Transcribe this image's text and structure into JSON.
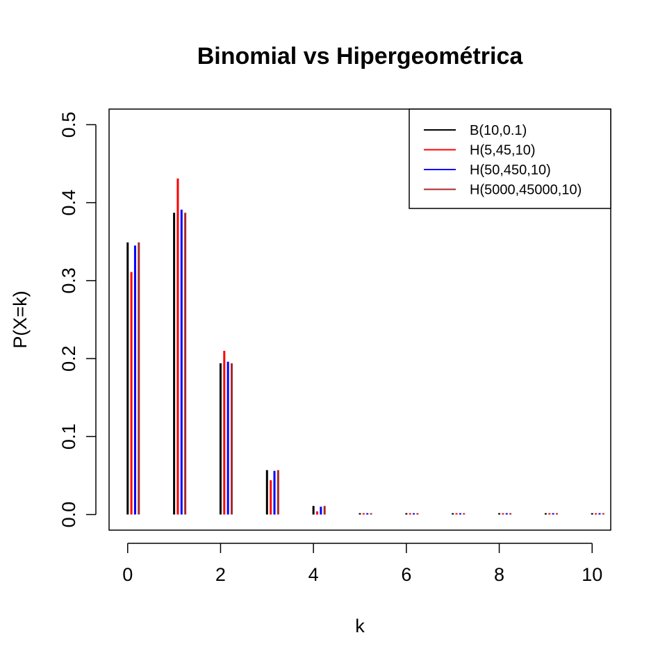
{
  "chart_data": {
    "type": "bar",
    "title": "Binomial vs Hipergeométrica",
    "xlabel": "k",
    "ylabel": "P(X=k)",
    "xlim": [
      -0.4,
      10.4
    ],
    "ylim": [
      -0.02,
      0.52
    ],
    "x_ticks": [
      "0",
      "2",
      "4",
      "6",
      "8",
      "10"
    ],
    "y_ticks": [
      "0.0",
      "0.1",
      "0.2",
      "0.3",
      "0.4",
      "0.5"
    ],
    "legend_position": "top-right",
    "x": [
      0,
      1,
      2,
      3,
      4,
      5,
      6,
      7,
      8,
      9,
      10
    ],
    "series": [
      {
        "name": "B(10,0.1)",
        "color": "#000000",
        "values": [
          0.349,
          0.387,
          0.194,
          0.057,
          0.011,
          0.0015,
          0.0001,
          0.0,
          0.0,
          0.0,
          0.0
        ]
      },
      {
        "name": "H(5,45,10)",
        "color": "#ff0000",
        "values": [
          0.311,
          0.431,
          0.21,
          0.044,
          0.004,
          0.0001,
          0.0,
          0.0,
          0.0,
          0.0,
          0.0
        ]
      },
      {
        "name": "H(50,450,10)",
        "color": "#0000ff",
        "values": [
          0.345,
          0.391,
          0.196,
          0.056,
          0.01,
          0.0012,
          0.0001,
          0.0,
          0.0,
          0.0,
          0.0
        ]
      },
      {
        "name": "H(5000,45000,10)",
        "color": "#a52a2a",
        "values": [
          0.349,
          0.387,
          0.194,
          0.057,
          0.011,
          0.0015,
          0.0001,
          0.0,
          0.0,
          0.0,
          0.0
        ]
      }
    ]
  }
}
